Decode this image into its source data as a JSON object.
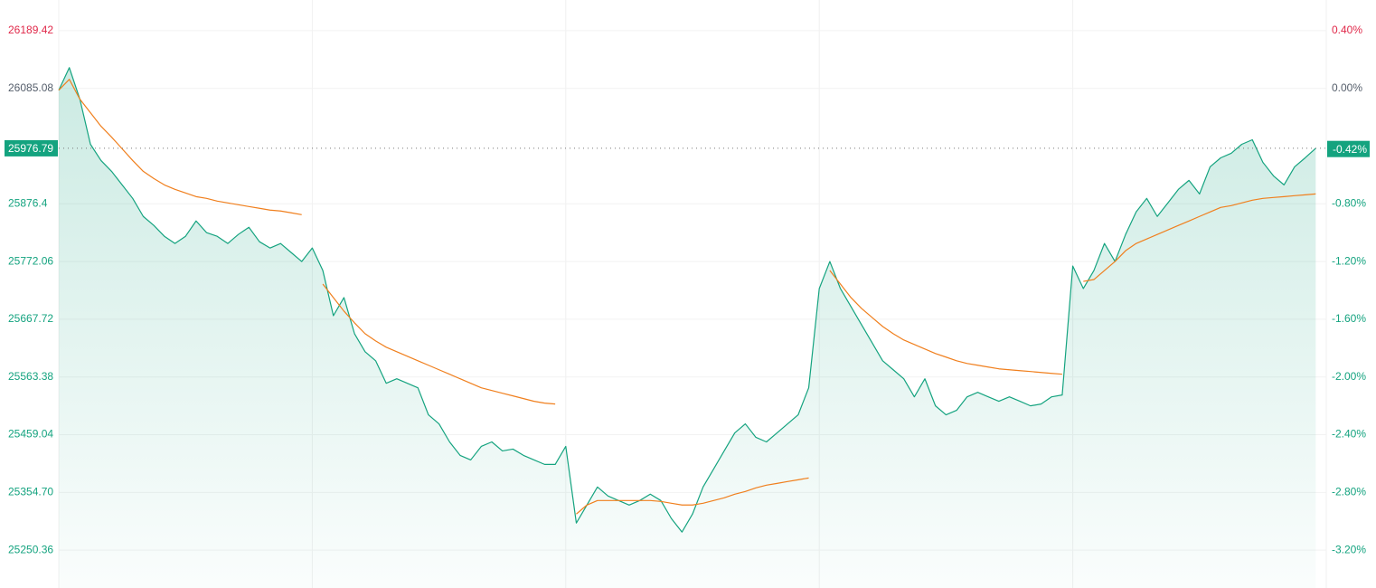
{
  "chart_data": {
    "type": "line",
    "x": [
      0,
      1,
      2,
      3,
      4,
      5,
      6,
      7,
      8,
      9,
      10,
      11,
      12,
      13,
      14,
      15,
      16,
      17,
      18,
      19,
      20,
      21,
      22,
      23,
      24,
      25,
      26,
      27,
      28,
      29,
      30,
      31,
      32,
      33,
      34,
      35,
      36,
      37,
      38,
      39,
      40,
      41,
      42,
      43,
      44,
      45,
      46,
      47,
      48,
      49,
      50,
      51,
      52,
      53,
      54,
      55,
      56,
      57,
      58,
      59,
      60,
      61,
      62,
      63,
      64,
      65,
      66,
      67,
      68,
      69,
      70,
      71,
      72,
      73,
      74,
      75,
      76,
      77,
      78,
      79,
      80,
      81,
      82,
      83,
      84,
      85,
      86,
      87,
      88,
      89,
      90,
      91,
      92,
      93,
      94,
      95,
      96,
      97,
      98,
      99,
      100,
      101,
      102,
      103,
      104,
      105,
      106,
      107,
      108,
      109,
      110,
      111,
      112,
      113,
      114,
      115,
      116,
      117,
      118,
      119
    ],
    "xlim": [
      0,
      120
    ],
    "xticks": [
      0,
      24,
      48,
      72,
      96,
      120
    ],
    "series": [
      {
        "color": "#14a37f",
        "area": true,
        "values": [
          26081.8,
          26122.6,
          26065.5,
          25984.0,
          25954.7,
          25935.1,
          25910.6,
          25886.2,
          25853.6,
          25837.3,
          25817.7,
          25804.7,
          25817.7,
          25845.4,
          25824.2,
          25817.7,
          25804.7,
          25821.0,
          25834.0,
          25807.9,
          25796.5,
          25804.7,
          25788.4,
          25772.1,
          25796.5,
          25755.8,
          25674.2,
          25706.9,
          25641.6,
          25609.0,
          25592.7,
          25552.0,
          25560.1,
          25552.0,
          25543.8,
          25494.9,
          25478.6,
          25446.0,
          25421.6,
          25413.4,
          25437.9,
          25446.0,
          25429.7,
          25433.0,
          25421.6,
          25413.4,
          25405.3,
          25405.3,
          25437.9,
          25299.3,
          25331.9,
          25364.5,
          25348.2,
          25340.0,
          25331.9,
          25340.0,
          25351.5,
          25340.0,
          25307.4,
          25283.0,
          25315.6,
          25364.5,
          25397.1,
          25429.7,
          25462.3,
          25478.6,
          25454.2,
          25446.0,
          25462.3,
          25478.6,
          25494.9,
          25543.8,
          25723.2,
          25772.1,
          25723.2,
          25690.6,
          25657.9,
          25625.3,
          25592.7,
          25576.4,
          25560.1,
          25527.5,
          25560.1,
          25511.2,
          25494.9,
          25503.1,
          25527.5,
          25535.7,
          25527.5,
          25519.4,
          25527.5,
          25519.4,
          25511.2,
          25514.5,
          25527.5,
          25530.8,
          25763.9,
          25723.2,
          25755.8,
          25804.7,
          25772.1,
          25821.0,
          25861.7,
          25886.2,
          25853.6,
          25878.0,
          25902.5,
          25918.8,
          25894.3,
          25943.2,
          25959.5,
          25967.7,
          25984.0,
          25992.2,
          25951.4,
          25926.9,
          25910.6,
          25943.2,
          25959.5,
          25976.79
        ]
      },
      {
        "color": "#f07f1d",
        "area": false,
        "values": [
          26081.8,
          26101.4,
          26065.5,
          26041.1,
          26016.6,
          25997.0,
          25975.8,
          25954.7,
          25935.1,
          25922.1,
          25910.6,
          25902.5,
          25896.0,
          25889.4,
          25886.2,
          25881.3,
          25878.0,
          25874.8,
          25871.5,
          25868.3,
          25865.0,
          25863.4,
          25860.1,
          25856.8,
          null,
          25731.3,
          25706.9,
          25682.4,
          25661.2,
          25641.6,
          25628.6,
          25617.2,
          25609.0,
          25600.9,
          25592.7,
          25584.6,
          25576.4,
          25568.3,
          25560.1,
          25552.0,
          25543.8,
          25538.9,
          25534.0,
          25529.2,
          25524.3,
          25519.4,
          25516.1,
          25514.5,
          null,
          25315.6,
          25331.9,
          25340.0,
          25340.0,
          25340.0,
          25340.0,
          25340.0,
          25340.0,
          25338.4,
          25335.1,
          25331.9,
          25331.9,
          25335.1,
          25340.0,
          25344.9,
          25351.5,
          25356.3,
          25362.9,
          25367.8,
          25371.0,
          25374.3,
          25377.5,
          25380.8,
          null,
          25755.8,
          25731.3,
          25706.9,
          25687.3,
          25671.0,
          25654.7,
          25641.6,
          25630.2,
          25622.1,
          25613.9,
          25605.8,
          25599.3,
          25592.7,
          25587.8,
          25584.6,
          25581.3,
          25578.1,
          25576.4,
          25574.8,
          25573.2,
          25571.5,
          25569.9,
          25568.3,
          null,
          25736.2,
          25739.5,
          25755.8,
          25772.1,
          25791.6,
          25804.7,
          25812.8,
          25821.0,
          25829.1,
          25837.3,
          25845.4,
          25853.6,
          25861.7,
          25869.9,
          25873.1,
          25878.0,
          25882.9,
          25886.2,
          25887.8,
          25889.4,
          25891.1,
          25892.7,
          25894.3
        ]
      }
    ],
    "ylim": [
      25181.89,
      26244.85
    ],
    "yticks": [
      26189.42,
      26085.08,
      25976.79,
      25876.4,
      25772.06,
      25667.72,
      25563.38,
      25459.04,
      {
        "value": 25354.7,
        "label": "25354.70"
      },
      25250.36
    ],
    "y2lim": [
      -3.4625,
      0.6125
    ],
    "y2ticks": [
      {
        "value": 0.4,
        "label": "0.40%"
      },
      {
        "value": 0,
        "label": "0.00%"
      },
      {
        "value": -0.42,
        "label": "-0.42%"
      },
      {
        "value": -0.8,
        "label": "-0.80%"
      },
      {
        "value": -1.2,
        "label": "-1.20%"
      },
      {
        "value": -1.6,
        "label": "-1.60%"
      },
      {
        "value": -2,
        "label": "-2.00%"
      },
      {
        "value": -2.4,
        "label": "-2.40%"
      },
      {
        "value": -2.8,
        "label": "-2.80%"
      },
      {
        "value": -3.2,
        "label": "-3.20%"
      }
    ],
    "last_tick_index": 2,
    "up_color": "#e0294a",
    "flat_color": "#555e6b",
    "down_color": "#14a37f",
    "grid": true
  }
}
